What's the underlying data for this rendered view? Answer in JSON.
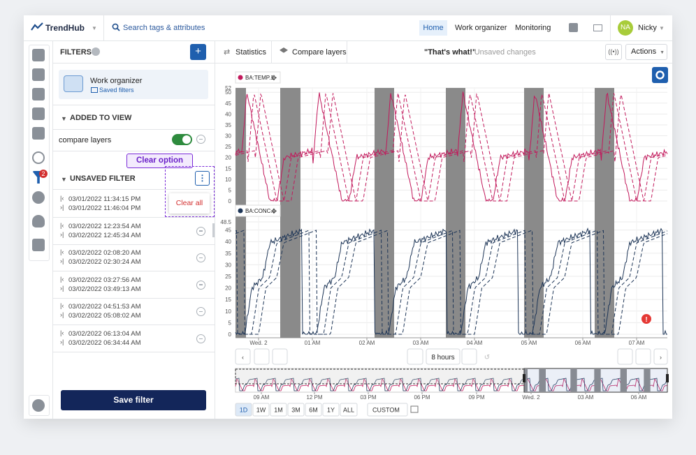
{
  "header": {
    "logo": "TrendHub",
    "search": "Search tags & attributes",
    "nav": [
      "Home",
      "Work organizer",
      "Monitoring"
    ],
    "avatar": "NA",
    "user": "Nicky"
  },
  "sidebar": {
    "badge": 2
  },
  "filters": {
    "title": "FILTERS",
    "folder": {
      "name": "Work organizer",
      "link": "Saved filters"
    },
    "added_section": "ADDED TO VIEW",
    "added_items": [
      "compare layers"
    ],
    "callout": "Clear option",
    "unsaved_section": "UNSAVED FILTER",
    "menu_item": "Clear all",
    "ranges": [
      {
        "start": "03/01/2022 11:34:15 PM",
        "end": "03/01/2022 11:46:04 PM"
      },
      {
        "start": "03/02/2022 12:23:54 AM",
        "end": "03/02/2022 12:45:34 AM"
      },
      {
        "start": "03/02/2022 02:08:20 AM",
        "end": "03/02/2022 02:30:24 AM"
      },
      {
        "start": "03/02/2022 03:27:56 AM",
        "end": "03/02/2022 03:49:13 AM"
      },
      {
        "start": "03/02/2022 04:51:53 AM",
        "end": "03/02/2022 05:08:02 AM"
      },
      {
        "start": "03/02/2022 06:13:04 AM",
        "end": "03/02/2022 06:34:44 AM"
      }
    ],
    "save_button": "Save filter"
  },
  "toolbar": {
    "tabs": [
      "Statistics",
      "Compare layers"
    ],
    "view_title": "\"That's what!\"",
    "status": "- Unsaved changes",
    "actions": "Actions"
  },
  "chart": {
    "x_labels": [
      "Wed. 2",
      "01 AM",
      "02 AM",
      "03 AM",
      "04 AM",
      "05 AM",
      "06 AM",
      "07 AM"
    ],
    "panels": [
      {
        "tag": "BA:TEMP.1",
        "color": "#c2185b",
        "yticks": [
          0,
          5,
          10,
          15,
          20,
          25,
          30,
          35,
          40,
          45,
          50,
          52
        ]
      },
      {
        "tag": "BA:CONC.1",
        "color": "#1d3557",
        "yticks": [
          0,
          5,
          10,
          15,
          20,
          25,
          30,
          35,
          40,
          45,
          48.5
        ]
      }
    ],
    "period": "8 hours",
    "navigator_labels": [
      "09 AM",
      "12 PM",
      "03 PM",
      "06 PM",
      "09 PM",
      "Wed. 2",
      "03 AM",
      "06 AM"
    ],
    "range_buttons": [
      "1D",
      "1W",
      "1M",
      "3M",
      "6M",
      "1Y",
      "ALL"
    ],
    "custom": "CUSTOM"
  }
}
